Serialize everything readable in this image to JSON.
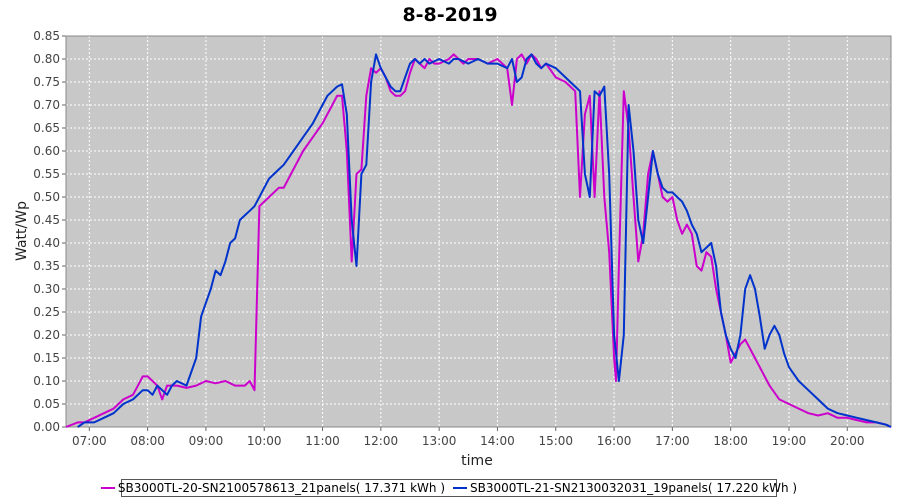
{
  "chart_data": {
    "type": "line",
    "title": "8-8-2019",
    "xlabel": "time",
    "ylabel": "Watt/Wp",
    "ylim": [
      0,
      0.85
    ],
    "xlim": [
      "06:36",
      "20:45"
    ],
    "x_ticks": [
      "07:00",
      "08:00",
      "09:00",
      "10:00",
      "11:00",
      "12:00",
      "13:00",
      "14:00",
      "15:00",
      "16:00",
      "17:00",
      "18:00",
      "19:00",
      "20:00"
    ],
    "y_ticks": [
      "0.00",
      "0.05",
      "0.10",
      "0.15",
      "0.20",
      "0.25",
      "0.30",
      "0.35",
      "0.40",
      "0.45",
      "0.50",
      "0.55",
      "0.60",
      "0.65",
      "0.70",
      "0.75",
      "0.80",
      "0.85"
    ],
    "grid": true,
    "legend_position": "bottom",
    "colors": {
      "plot_background": "#c8c8c8",
      "grid": "#ffffff"
    },
    "series": [
      {
        "name": "SB3000TL-20-SN2100578613_21panels( 17.371 kWh )",
        "color": "#cc00cc",
        "points": [
          [
            "06:36",
            0.0
          ],
          [
            "06:48",
            0.01
          ],
          [
            "06:55",
            0.01
          ],
          [
            "07:05",
            0.02
          ],
          [
            "07:15",
            0.03
          ],
          [
            "07:25",
            0.04
          ],
          [
            "07:35",
            0.06
          ],
          [
            "07:45",
            0.07
          ],
          [
            "07:55",
            0.11
          ],
          [
            "08:00",
            0.11
          ],
          [
            "08:05",
            0.1
          ],
          [
            "08:10",
            0.09
          ],
          [
            "08:15",
            0.06
          ],
          [
            "08:20",
            0.09
          ],
          [
            "08:30",
            0.09
          ],
          [
            "08:40",
            0.085
          ],
          [
            "08:50",
            0.09
          ],
          [
            "09:00",
            0.1
          ],
          [
            "09:10",
            0.095
          ],
          [
            "09:20",
            0.1
          ],
          [
            "09:30",
            0.09
          ],
          [
            "09:40",
            0.09
          ],
          [
            "09:45",
            0.1
          ],
          [
            "09:50",
            0.08
          ],
          [
            "09:55",
            0.48
          ],
          [
            "10:05",
            0.5
          ],
          [
            "10:15",
            0.52
          ],
          [
            "10:20",
            0.52
          ],
          [
            "10:30",
            0.56
          ],
          [
            "10:40",
            0.6
          ],
          [
            "10:50",
            0.63
          ],
          [
            "11:00",
            0.66
          ],
          [
            "11:05",
            0.68
          ],
          [
            "11:10",
            0.7
          ],
          [
            "11:15",
            0.72
          ],
          [
            "11:20",
            0.72
          ],
          [
            "11:25",
            0.6
          ],
          [
            "11:30",
            0.36
          ],
          [
            "11:35",
            0.55
          ],
          [
            "11:40",
            0.56
          ],
          [
            "11:45",
            0.72
          ],
          [
            "11:50",
            0.78
          ],
          [
            "11:55",
            0.77
          ],
          [
            "12:00",
            0.78
          ],
          [
            "12:05",
            0.76
          ],
          [
            "12:10",
            0.73
          ],
          [
            "12:15",
            0.72
          ],
          [
            "12:20",
            0.72
          ],
          [
            "12:25",
            0.73
          ],
          [
            "12:30",
            0.77
          ],
          [
            "12:35",
            0.8
          ],
          [
            "12:40",
            0.79
          ],
          [
            "12:45",
            0.78
          ],
          [
            "12:50",
            0.8
          ],
          [
            "12:55",
            0.79
          ],
          [
            "13:00",
            0.79
          ],
          [
            "13:10",
            0.8
          ],
          [
            "13:15",
            0.81
          ],
          [
            "13:20",
            0.8
          ],
          [
            "13:25",
            0.79
          ],
          [
            "13:30",
            0.8
          ],
          [
            "13:40",
            0.8
          ],
          [
            "13:50",
            0.79
          ],
          [
            "14:00",
            0.8
          ],
          [
            "14:10",
            0.78
          ],
          [
            "14:15",
            0.7
          ],
          [
            "14:20",
            0.8
          ],
          [
            "14:25",
            0.81
          ],
          [
            "14:30",
            0.79
          ],
          [
            "14:35",
            0.81
          ],
          [
            "14:40",
            0.8
          ],
          [
            "14:45",
            0.78
          ],
          [
            "14:50",
            0.79
          ],
          [
            "15:00",
            0.76
          ],
          [
            "15:10",
            0.75
          ],
          [
            "15:20",
            0.73
          ],
          [
            "15:25",
            0.5
          ],
          [
            "15:30",
            0.68
          ],
          [
            "15:35",
            0.72
          ],
          [
            "15:40",
            0.5
          ],
          [
            "15:45",
            0.73
          ],
          [
            "15:50",
            0.5
          ],
          [
            "15:55",
            0.38
          ],
          [
            "16:00",
            0.15
          ],
          [
            "16:02",
            0.1
          ],
          [
            "16:05",
            0.35
          ],
          [
            "16:10",
            0.73
          ],
          [
            "16:15",
            0.65
          ],
          [
            "16:20",
            0.5
          ],
          [
            "16:25",
            0.36
          ],
          [
            "16:30",
            0.42
          ],
          [
            "16:35",
            0.55
          ],
          [
            "16:40",
            0.6
          ],
          [
            "16:45",
            0.55
          ],
          [
            "16:50",
            0.5
          ],
          [
            "16:55",
            0.49
          ],
          [
            "17:00",
            0.5
          ],
          [
            "17:05",
            0.45
          ],
          [
            "17:10",
            0.42
          ],
          [
            "17:15",
            0.44
          ],
          [
            "17:20",
            0.42
          ],
          [
            "17:25",
            0.35
          ],
          [
            "17:30",
            0.34
          ],
          [
            "17:35",
            0.38
          ],
          [
            "17:40",
            0.37
          ],
          [
            "17:45",
            0.3
          ],
          [
            "17:50",
            0.25
          ],
          [
            "17:55",
            0.2
          ],
          [
            "18:00",
            0.14
          ],
          [
            "18:05",
            0.16
          ],
          [
            "18:10",
            0.18
          ],
          [
            "18:15",
            0.19
          ],
          [
            "18:20",
            0.17
          ],
          [
            "18:30",
            0.13
          ],
          [
            "18:40",
            0.09
          ],
          [
            "18:50",
            0.06
          ],
          [
            "19:00",
            0.05
          ],
          [
            "19:10",
            0.04
          ],
          [
            "19:20",
            0.03
          ],
          [
            "19:30",
            0.025
          ],
          [
            "19:40",
            0.03
          ],
          [
            "19:50",
            0.02
          ],
          [
            "20:00",
            0.02
          ],
          [
            "20:10",
            0.015
          ],
          [
            "20:20",
            0.01
          ],
          [
            "20:30",
            0.01
          ],
          [
            "20:40",
            0.005
          ],
          [
            "20:45",
            0.0
          ]
        ]
      },
      {
        "name": "SB3000TL-21-SN2130032031_19panels( 17.220 kWh )",
        "color": "#0033cc",
        "points": [
          [
            "06:48",
            0.0
          ],
          [
            "06:55",
            0.01
          ],
          [
            "07:05",
            0.01
          ],
          [
            "07:15",
            0.02
          ],
          [
            "07:25",
            0.03
          ],
          [
            "07:35",
            0.05
          ],
          [
            "07:45",
            0.06
          ],
          [
            "07:55",
            0.08
          ],
          [
            "08:00",
            0.08
          ],
          [
            "08:05",
            0.07
          ],
          [
            "08:10",
            0.09
          ],
          [
            "08:15",
            0.08
          ],
          [
            "08:20",
            0.07
          ],
          [
            "08:25",
            0.09
          ],
          [
            "08:30",
            0.1
          ],
          [
            "08:40",
            0.09
          ],
          [
            "08:50",
            0.15
          ],
          [
            "08:55",
            0.24
          ],
          [
            "09:00",
            0.27
          ],
          [
            "09:05",
            0.3
          ],
          [
            "09:10",
            0.34
          ],
          [
            "09:15",
            0.33
          ],
          [
            "09:20",
            0.36
          ],
          [
            "09:25",
            0.4
          ],
          [
            "09:30",
            0.41
          ],
          [
            "09:35",
            0.45
          ],
          [
            "09:40",
            0.46
          ],
          [
            "09:45",
            0.47
          ],
          [
            "09:50",
            0.48
          ],
          [
            "09:55",
            0.5
          ],
          [
            "10:00",
            0.52
          ],
          [
            "10:05",
            0.54
          ],
          [
            "10:10",
            0.55
          ],
          [
            "10:15",
            0.56
          ],
          [
            "10:20",
            0.57
          ],
          [
            "10:30",
            0.6
          ],
          [
            "10:40",
            0.63
          ],
          [
            "10:50",
            0.66
          ],
          [
            "11:00",
            0.7
          ],
          [
            "11:05",
            0.72
          ],
          [
            "11:10",
            0.73
          ],
          [
            "11:15",
            0.74
          ],
          [
            "11:20",
            0.745
          ],
          [
            "11:25",
            0.68
          ],
          [
            "11:30",
            0.45
          ],
          [
            "11:35",
            0.35
          ],
          [
            "11:40",
            0.55
          ],
          [
            "11:45",
            0.57
          ],
          [
            "11:50",
            0.75
          ],
          [
            "11:55",
            0.81
          ],
          [
            "12:00",
            0.78
          ],
          [
            "12:05",
            0.76
          ],
          [
            "12:10",
            0.74
          ],
          [
            "12:15",
            0.73
          ],
          [
            "12:20",
            0.73
          ],
          [
            "12:25",
            0.76
          ],
          [
            "12:30",
            0.79
          ],
          [
            "12:35",
            0.8
          ],
          [
            "12:40",
            0.79
          ],
          [
            "12:45",
            0.8
          ],
          [
            "12:50",
            0.79
          ],
          [
            "13:00",
            0.8
          ],
          [
            "13:10",
            0.79
          ],
          [
            "13:15",
            0.8
          ],
          [
            "13:20",
            0.8
          ],
          [
            "13:30",
            0.79
          ],
          [
            "13:40",
            0.8
          ],
          [
            "13:50",
            0.79
          ],
          [
            "14:00",
            0.79
          ],
          [
            "14:10",
            0.78
          ],
          [
            "14:15",
            0.8
          ],
          [
            "14:20",
            0.75
          ],
          [
            "14:25",
            0.76
          ],
          [
            "14:30",
            0.8
          ],
          [
            "14:35",
            0.81
          ],
          [
            "14:40",
            0.79
          ],
          [
            "14:45",
            0.78
          ],
          [
            "14:50",
            0.79
          ],
          [
            "15:00",
            0.78
          ],
          [
            "15:10",
            0.76
          ],
          [
            "15:20",
            0.74
          ],
          [
            "15:25",
            0.73
          ],
          [
            "15:30",
            0.55
          ],
          [
            "15:35",
            0.5
          ],
          [
            "15:40",
            0.73
          ],
          [
            "15:45",
            0.72
          ],
          [
            "15:50",
            0.74
          ],
          [
            "15:55",
            0.55
          ],
          [
            "16:00",
            0.2
          ],
          [
            "16:05",
            0.1
          ],
          [
            "16:10",
            0.2
          ],
          [
            "16:15",
            0.7
          ],
          [
            "16:20",
            0.6
          ],
          [
            "16:25",
            0.45
          ],
          [
            "16:30",
            0.4
          ],
          [
            "16:35",
            0.5
          ],
          [
            "16:40",
            0.6
          ],
          [
            "16:45",
            0.55
          ],
          [
            "16:50",
            0.52
          ],
          [
            "16:55",
            0.51
          ],
          [
            "17:00",
            0.51
          ],
          [
            "17:05",
            0.5
          ],
          [
            "17:10",
            0.49
          ],
          [
            "17:15",
            0.47
          ],
          [
            "17:20",
            0.44
          ],
          [
            "17:25",
            0.42
          ],
          [
            "17:30",
            0.38
          ],
          [
            "17:35",
            0.39
          ],
          [
            "17:40",
            0.4
          ],
          [
            "17:45",
            0.35
          ],
          [
            "17:50",
            0.25
          ],
          [
            "17:55",
            0.2
          ],
          [
            "18:00",
            0.17
          ],
          [
            "18:05",
            0.15
          ],
          [
            "18:10",
            0.2
          ],
          [
            "18:15",
            0.3
          ],
          [
            "18:20",
            0.33
          ],
          [
            "18:25",
            0.3
          ],
          [
            "18:30",
            0.24
          ],
          [
            "18:35",
            0.17
          ],
          [
            "18:40",
            0.2
          ],
          [
            "18:45",
            0.22
          ],
          [
            "18:50",
            0.2
          ],
          [
            "18:55",
            0.16
          ],
          [
            "19:00",
            0.13
          ],
          [
            "19:10",
            0.1
          ],
          [
            "19:20",
            0.08
          ],
          [
            "19:30",
            0.06
          ],
          [
            "19:40",
            0.04
          ],
          [
            "19:50",
            0.03
          ],
          [
            "20:00",
            0.025
          ],
          [
            "20:10",
            0.02
          ],
          [
            "20:20",
            0.015
          ],
          [
            "20:30",
            0.01
          ],
          [
            "20:40",
            0.005
          ],
          [
            "20:45",
            0.0
          ]
        ]
      }
    ]
  }
}
